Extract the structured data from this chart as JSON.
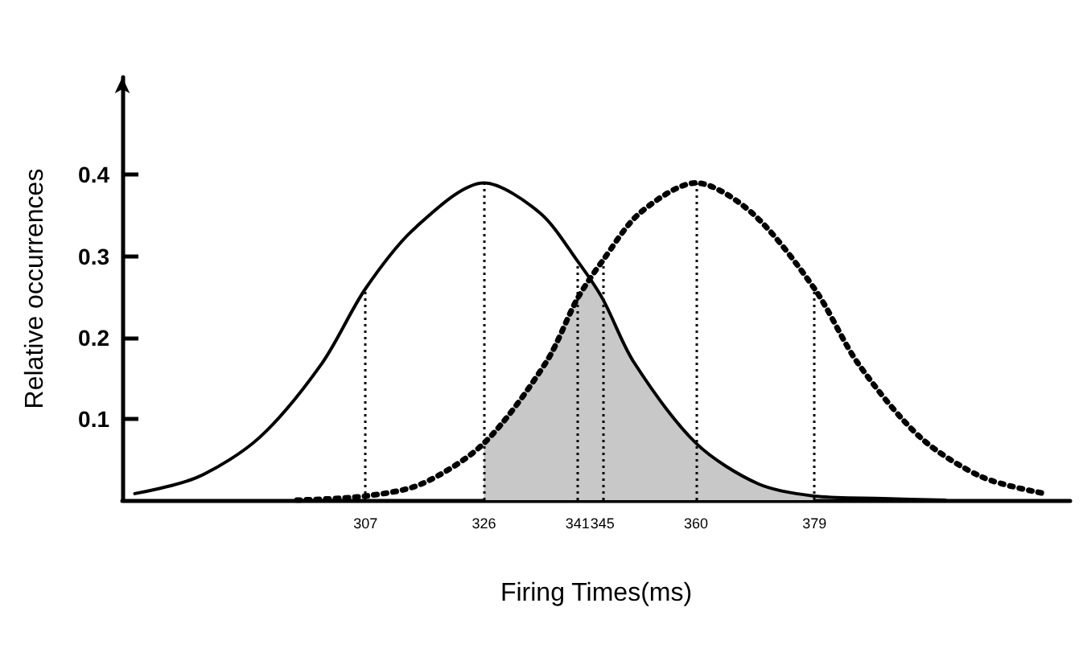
{
  "chart_data": {
    "type": "line",
    "xlabel": "Firing Times(ms)",
    "ylabel": "Relative occurrences",
    "xlim": [
      268,
      420
    ],
    "ylim": [
      0,
      0.52
    ],
    "xticks": [
      307,
      326,
      341,
      345,
      360,
      379
    ],
    "yticks": [
      0.1,
      0.2,
      0.3,
      0.4
    ],
    "grid": false,
    "marker": "none",
    "series": [
      {
        "type": "area",
        "color": "#c8c8c8",
        "x": [
          326,
          334,
          341,
          343,
          345,
          350,
          360,
          370,
          379
        ],
        "values": [
          0.07,
          0.15,
          0.248,
          0.27,
          0.248,
          0.17,
          0.07,
          0.02,
          0.005
        ]
      },
      {
        "type": "line",
        "color": "#000000",
        "line_style": "solid",
        "x": [
          270,
          280,
          290,
          300,
          307,
          315,
          326,
          335,
          341,
          345,
          350,
          360,
          370,
          379,
          390,
          400
        ],
        "values": [
          0.008,
          0.028,
          0.077,
          0.168,
          0.26,
          0.335,
          0.39,
          0.353,
          0.294,
          0.248,
          0.17,
          0.07,
          0.02,
          0.005,
          0.002,
          0
        ]
      },
      {
        "type": "line",
        "color": "#000000",
        "line_style": "dotted",
        "x": [
          296,
          307,
          316,
          326,
          336,
          341,
          345,
          351,
          360,
          369,
          379,
          386,
          396,
          406,
          416
        ],
        "values": [
          0,
          0.005,
          0.02,
          0.07,
          0.17,
          0.248,
          0.294,
          0.353,
          0.39,
          0.353,
          0.26,
          0.168,
          0.077,
          0.028,
          0.008
        ]
      }
    ],
    "ref_lines": [
      {
        "axis": "x",
        "value": 307,
        "line_style": "dotted",
        "color": "#000000"
      },
      {
        "axis": "x",
        "value": 326,
        "line_style": "dotted",
        "color": "#000000"
      },
      {
        "axis": "x",
        "value": 341,
        "line_style": "dotted",
        "color": "#000000"
      },
      {
        "axis": "x",
        "value": 345,
        "line_style": "dotted",
        "color": "#000000"
      },
      {
        "axis": "x",
        "value": 360,
        "line_style": "dotted",
        "color": "#000000"
      },
      {
        "axis": "x",
        "value": 379,
        "line_style": "dotted",
        "color": "#000000"
      }
    ]
  }
}
